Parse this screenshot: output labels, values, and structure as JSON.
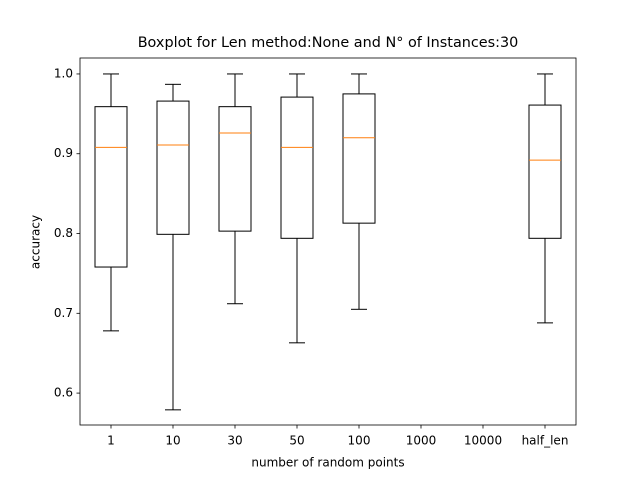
{
  "chart_data": {
    "type": "boxplot",
    "title": "Boxplot for Len method:None and N° of Instances:30",
    "x_label": "number of random points",
    "y_label": "accuracy",
    "categories": [
      "1",
      "10",
      "30",
      "50",
      "100",
      "1000",
      "10000",
      "half_len"
    ],
    "whisker_low": [
      0.678,
      0.579,
      0.712,
      0.663,
      0.705,
      null,
      null,
      0.688
    ],
    "q1": [
      0.758,
      0.799,
      0.803,
      0.794,
      0.813,
      null,
      null,
      0.794
    ],
    "median": [
      0.908,
      0.911,
      0.926,
      0.908,
      0.92,
      null,
      null,
      0.892
    ],
    "q3": [
      0.959,
      0.966,
      0.959,
      0.971,
      0.975,
      null,
      null,
      0.961
    ],
    "whisker_high": [
      1.0,
      0.987,
      1.0,
      1.0,
      1.0,
      null,
      null,
      1.0
    ],
    "box_color": "#000000",
    "median_color": "#ff7f0e",
    "ylim": [
      0.56,
      1.02
    ],
    "yticks": [
      0.6,
      0.7,
      0.8,
      0.9,
      {
        "value": 1.0,
        "label": "1.0"
      }
    ],
    "grid": false
  }
}
